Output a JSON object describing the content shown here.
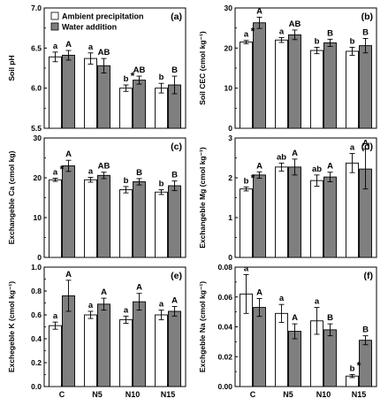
{
  "x_categories": [
    "C",
    "N5",
    "N10",
    "N15"
  ],
  "legend": [
    {
      "name": "Ambient precipitation",
      "color": "#ffffff"
    },
    {
      "name": "Water addition",
      "color": "#7f7f7f"
    }
  ],
  "chart_data": [
    {
      "panel": "(a)",
      "type": "bar",
      "ylabel": "Soil pH",
      "ylim": [
        5.5,
        7.0
      ],
      "yticks": [
        "5.5",
        "6.0",
        "6.5",
        "7.0"
      ],
      "ytick_values": [
        5.5,
        6.0,
        6.5,
        7.0
      ],
      "categories": [
        "C",
        "N5",
        "N10",
        "N15"
      ],
      "series": [
        {
          "name": "Ambient precipitation",
          "values": [
            6.39,
            6.37,
            6.0,
            6.0
          ],
          "errors": [
            0.06,
            0.07,
            0.04,
            0.06
          ],
          "letters": [
            "a",
            "a",
            "b",
            "b"
          ]
        },
        {
          "name": "Water addition",
          "values": [
            6.41,
            6.28,
            6.1,
            6.04
          ],
          "errors": [
            0.06,
            0.09,
            0.05,
            0.11
          ],
          "letters": [
            "A",
            "AB",
            "AB",
            "B"
          ]
        }
      ],
      "stars": [
        "",
        "",
        "*",
        ""
      ]
    },
    {
      "panel": "(b)",
      "type": "bar",
      "ylabel": "Soil CEC (cmol kg⁻¹)",
      "ylim": [
        0,
        30
      ],
      "yticks": [
        "0",
        "10",
        "20",
        "30"
      ],
      "ytick_values": [
        0,
        10,
        20,
        30
      ],
      "categories": [
        "C",
        "N5",
        "N10",
        "N15"
      ],
      "series": [
        {
          "name": "Ambient precipitation",
          "values": [
            21.5,
            22.0,
            19.4,
            19.2
          ],
          "errors": [
            0.4,
            0.6,
            0.8,
            1.0
          ],
          "letters": [
            "a",
            "a",
            "b",
            "b"
          ]
        },
        {
          "name": "Water addition",
          "values": [
            26.3,
            23.3,
            21.3,
            20.6
          ],
          "errors": [
            1.4,
            1.2,
            0.9,
            1.8
          ],
          "letters": [
            "A",
            "AB",
            "B",
            "B"
          ]
        }
      ],
      "stars": [
        "*",
        "",
        "",
        ""
      ]
    },
    {
      "panel": "(c)",
      "type": "bar",
      "ylabel": "Exchangeble Ca (cmol kg)",
      "ylim": [
        0,
        30
      ],
      "yticks": [
        "0",
        "10",
        "20",
        "30"
      ],
      "ytick_values": [
        0,
        10,
        20,
        30
      ],
      "categories": [
        "C",
        "N5",
        "N10",
        "N15"
      ],
      "series": [
        {
          "name": "Ambient precipitation",
          "values": [
            19.5,
            19.5,
            17.0,
            16.4
          ],
          "errors": [
            0.4,
            0.6,
            0.8,
            0.6
          ],
          "letters": [
            "a",
            "a",
            "b",
            "b"
          ]
        },
        {
          "name": "Water addition",
          "values": [
            23.0,
            20.6,
            19.0,
            18.0
          ],
          "errors": [
            1.4,
            0.8,
            0.8,
            1.2
          ],
          "letters": [
            "A",
            "AB",
            "B",
            "B"
          ]
        }
      ],
      "stars": [
        "*",
        "",
        "",
        ""
      ]
    },
    {
      "panel": "(d)",
      "type": "bar",
      "ylabel": "Exchangeble Mg (cmol kg⁻¹)",
      "ylim": [
        0,
        3
      ],
      "yticks": [
        "0",
        "1",
        "2",
        "3"
      ],
      "ytick_values": [
        0,
        1,
        2,
        3
      ],
      "categories": [
        "C",
        "N5",
        "N10",
        "N15"
      ],
      "series": [
        {
          "name": "Ambient precipitation",
          "values": [
            1.72,
            2.27,
            1.93,
            2.37
          ],
          "errors": [
            0.05,
            0.1,
            0.14,
            0.24
          ],
          "letters": [
            "b",
            "ab",
            "ab",
            "a"
          ]
        },
        {
          "name": "Water addition",
          "values": [
            2.07,
            2.27,
            2.02,
            2.22
          ],
          "errors": [
            0.08,
            0.2,
            0.12,
            0.5
          ],
          "letters": [
            "A",
            "A",
            "A",
            "A"
          ]
        }
      ],
      "stars": [
        "*",
        "",
        "",
        ""
      ]
    },
    {
      "panel": "(e)",
      "type": "bar",
      "ylabel": "Exchegeble K (cmol kg⁻¹)",
      "ylim": [
        0,
        1.0
      ],
      "yticks": [
        "0.0",
        "0.2",
        "0.4",
        "0.6",
        "0.8",
        "1.0"
      ],
      "ytick_values": [
        0,
        0.2,
        0.4,
        0.6,
        0.8,
        1.0
      ],
      "categories": [
        "C",
        "N5",
        "N10",
        "N15"
      ],
      "series": [
        {
          "name": "Ambient precipitation",
          "values": [
            0.51,
            0.6,
            0.56,
            0.6
          ],
          "errors": [
            0.03,
            0.03,
            0.03,
            0.04
          ],
          "letters": [
            "a",
            "a",
            "a",
            "a"
          ]
        },
        {
          "name": "Water addition",
          "values": [
            0.76,
            0.69,
            0.71,
            0.63
          ],
          "errors": [
            0.13,
            0.05,
            0.07,
            0.04
          ],
          "letters": [
            "A",
            "A",
            "A",
            "A"
          ]
        }
      ],
      "stars": [
        "",
        "",
        "",
        ""
      ]
    },
    {
      "panel": "(f)",
      "type": "bar",
      "ylabel": "Exchgeble Na (cmol kg⁻¹)",
      "ylim": [
        0,
        0.08
      ],
      "yticks": [
        "0.00",
        "0.02",
        "0.04",
        "0.06",
        "0.08"
      ],
      "ytick_values": [
        0,
        0.02,
        0.04,
        0.06,
        0.08
      ],
      "categories": [
        "C",
        "N5",
        "N10",
        "N15"
      ],
      "series": [
        {
          "name": "Ambient precipitation",
          "values": [
            0.062,
            0.049,
            0.044,
            0.007
          ],
          "errors": [
            0.013,
            0.006,
            0.009,
            0.001
          ],
          "letters": [
            "a",
            "a",
            "a",
            "b"
          ]
        },
        {
          "name": "Water addition",
          "values": [
            0.053,
            0.037,
            0.038,
            0.031
          ],
          "errors": [
            0.006,
            0.005,
            0.004,
            0.003
          ],
          "letters": [
            "A",
            "A",
            "B",
            "B"
          ]
        }
      ],
      "stars": [
        "",
        "",
        "",
        "*"
      ]
    }
  ]
}
